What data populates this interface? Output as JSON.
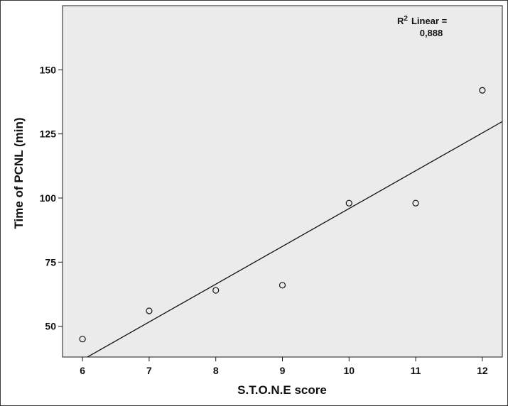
{
  "chart_data": {
    "type": "scatter",
    "title": "",
    "xlabel": "S.T.O.N.E score",
    "ylabel": "Time of PCNL (min)",
    "xlim": [
      5.7,
      12.3
    ],
    "ylim": [
      38,
      175
    ],
    "x_ticks": [
      6,
      7,
      8,
      9,
      10,
      11,
      12
    ],
    "y_ticks": [
      50,
      75,
      100,
      125,
      150
    ],
    "grid": false,
    "plot_background": "#ebebeb",
    "points": [
      {
        "x": 6,
        "y": 45
      },
      {
        "x": 7,
        "y": 56
      },
      {
        "x": 8,
        "y": 64
      },
      {
        "x": 9,
        "y": 66
      },
      {
        "x": 10,
        "y": 98
      },
      {
        "x": 11,
        "y": 98
      },
      {
        "x": 12,
        "y": 142
      }
    ],
    "fit_line": {
      "type": "linear",
      "x_range": [
        5.7,
        12.3
      ],
      "y_range": [
        32.5,
        129.8
      ]
    },
    "annotation": {
      "prefix": "R",
      "superscript": "2",
      "label": "Linear =",
      "value": "0,888"
    }
  }
}
